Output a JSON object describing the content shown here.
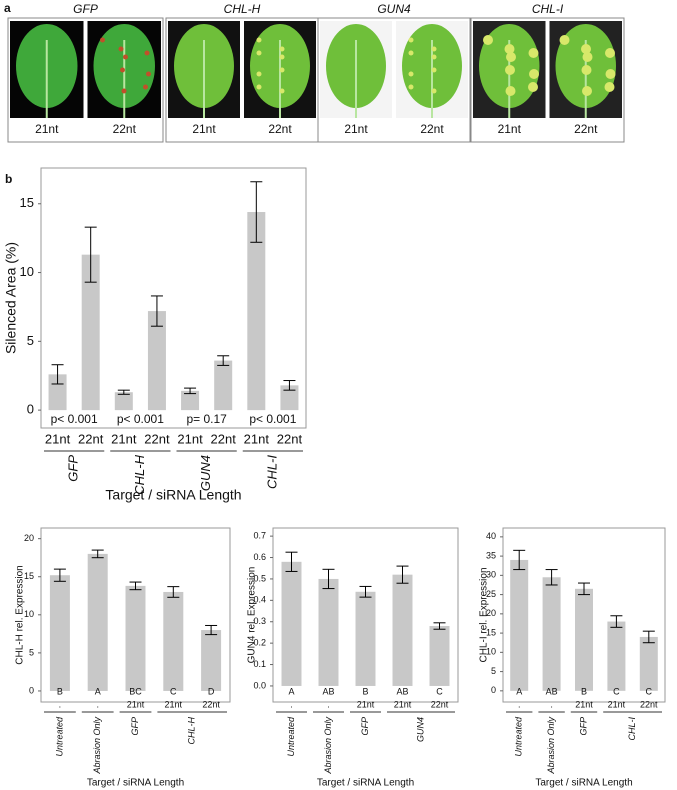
{
  "panel_a": {
    "label": "a",
    "groups": [
      {
        "name": "GFP",
        "lanes": [
          "21nt",
          "22nt"
        ]
      },
      {
        "name": "CHL-H",
        "lanes": [
          "21nt",
          "22nt"
        ]
      },
      {
        "name": "GUN4",
        "lanes": [
          "21nt",
          "22nt"
        ]
      },
      {
        "name": "CHL-I",
        "lanes": [
          "21nt",
          "22nt"
        ]
      }
    ]
  },
  "chart_data": [
    {
      "type": "bar",
      "panel": "b",
      "ylabel": "Silenced Area (%)",
      "xlabel": "Target / siRNA Length",
      "groups": [
        {
          "name": "GFP",
          "categories": [
            "21nt",
            "22nt"
          ]
        },
        {
          "name": "CHL-H",
          "categories": [
            "21nt",
            "22nt"
          ]
        },
        {
          "name": "GUN4",
          "categories": [
            "21nt",
            "22nt"
          ]
        },
        {
          "name": "CHL-I",
          "categories": [
            "21nt",
            "22nt"
          ]
        }
      ],
      "values": [
        2.6,
        11.3,
        1.3,
        7.2,
        1.4,
        3.6,
        14.4,
        1.8
      ],
      "errors": [
        0.7,
        2.0,
        0.15,
        1.1,
        0.2,
        0.35,
        2.2,
        0.35
      ],
      "group_annotations": [
        "p< 0.001",
        "p< 0.001",
        "p= 0.17",
        "p< 0.001"
      ],
      "color": "#c8c8c8",
      "ylim": [
        -1.3,
        17.6
      ],
      "yticks": [
        0,
        5,
        10,
        15
      ]
    },
    {
      "type": "bar",
      "ylabel": "CHL-H rel. Expression",
      "xlabel": "Target / siRNA Length",
      "groups": [
        {
          "name": "Untreated",
          "categories": [
            "."
          ]
        },
        {
          "name": "Abrasion Only",
          "categories": [
            "."
          ]
        },
        {
          "name": "GFP",
          "categories": [
            "21nt"
          ]
        },
        {
          "name": "CHL-H",
          "categories": [
            "21nt",
            "22nt"
          ]
        }
      ],
      "values": [
        15.2,
        18.0,
        13.8,
        13.0,
        8.0
      ],
      "errors": [
        0.8,
        0.5,
        0.5,
        0.7,
        0.6
      ],
      "annotations": [
        "B",
        "A",
        "BC",
        "C",
        "D"
      ],
      "color": "#c8c8c8",
      "ylim": [
        -1.45,
        21.4
      ],
      "yticks": [
        0,
        5,
        10,
        15,
        20
      ]
    },
    {
      "type": "bar",
      "ylabel": "GUN4 rel. Expression",
      "xlabel": "Target / siRNA Length",
      "groups": [
        {
          "name": "Untreated",
          "categories": [
            "."
          ]
        },
        {
          "name": "Abrasion Only",
          "categories": [
            "."
          ]
        },
        {
          "name": "GFP",
          "categories": [
            "21nt"
          ]
        },
        {
          "name": "GUN4",
          "categories": [
            "21nt",
            "22nt"
          ]
        }
      ],
      "values": [
        0.58,
        0.5,
        0.44,
        0.52,
        0.28
      ],
      "errors": [
        0.045,
        0.045,
        0.025,
        0.04,
        0.015
      ],
      "annotations": [
        "A",
        "AB",
        "B",
        "AB",
        "C"
      ],
      "color": "#c8c8c8",
      "ylim": [
        -0.075,
        0.738
      ],
      "yticks": [
        {
          "value": 0,
          "label": "0.0"
        },
        0.1,
        0.2,
        0.3,
        0.4,
        0.5,
        0.6,
        0.7
      ]
    },
    {
      "type": "bar",
      "ylabel": "CHL-I rel. Expression",
      "xlabel": "Target / siRNA Length",
      "groups": [
        {
          "name": "Untreated",
          "categories": [
            "."
          ]
        },
        {
          "name": "Abrasion Only",
          "categories": [
            "."
          ]
        },
        {
          "name": "GFP",
          "categories": [
            "21nt"
          ]
        },
        {
          "name": "CHL-I",
          "categories": [
            "21nt",
            "22nt"
          ]
        }
      ],
      "values": [
        34,
        29.5,
        26.5,
        18,
        14
      ],
      "errors": [
        2.5,
        2,
        1.5,
        1.5,
        1.5
      ],
      "annotations": [
        "A",
        "AB",
        "B",
        "C",
        "C"
      ],
      "color": "#c8c8c8",
      "ylim": [
        -2.9,
        42.3
      ],
      "yticks": [
        0,
        5,
        10,
        15,
        20,
        25,
        30,
        35,
        40
      ]
    }
  ]
}
